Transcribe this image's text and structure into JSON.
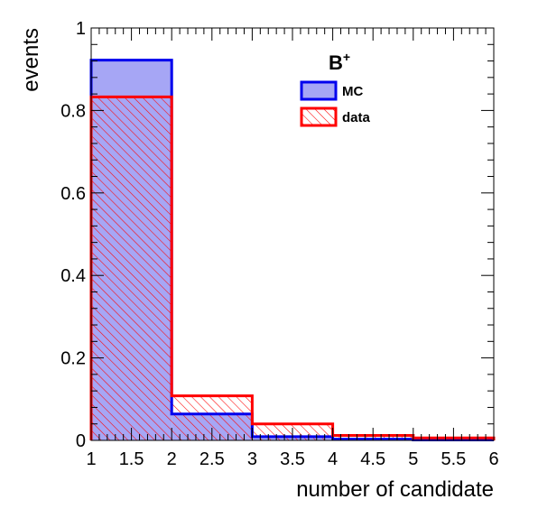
{
  "chart_data": {
    "type": "histogram",
    "title": "",
    "xlabel": "number of candidate",
    "ylabel": "events",
    "xlim": [
      1,
      6
    ],
    "ylim": [
      0,
      1
    ],
    "bin_edges": [
      1,
      2,
      3,
      4,
      5,
      6
    ],
    "x_tick_labels": [
      "1",
      "1.5",
      "2",
      "2.5",
      "3",
      "3.5",
      "4",
      "4.5",
      "5",
      "5.5",
      "6"
    ],
    "y_tick_labels": [
      "0",
      "0.2",
      "0.4",
      "0.6",
      "0.8",
      "1"
    ],
    "legend": {
      "title": "B",
      "title_superscript": "+",
      "placement": "top-right"
    },
    "series": [
      {
        "name": "MC",
        "values": [
          0.922,
          0.064,
          0.009,
          0.003,
          0.001
        ],
        "line_color": "#0000ee",
        "fill_color": "#a6a6f5",
        "fill_style": "solid"
      },
      {
        "name": "data",
        "values": [
          0.833,
          0.108,
          0.04,
          0.012,
          0.006
        ],
        "line_color": "#ff0000",
        "fill_color": "#ff0000",
        "fill_style": "hatched"
      }
    ]
  }
}
